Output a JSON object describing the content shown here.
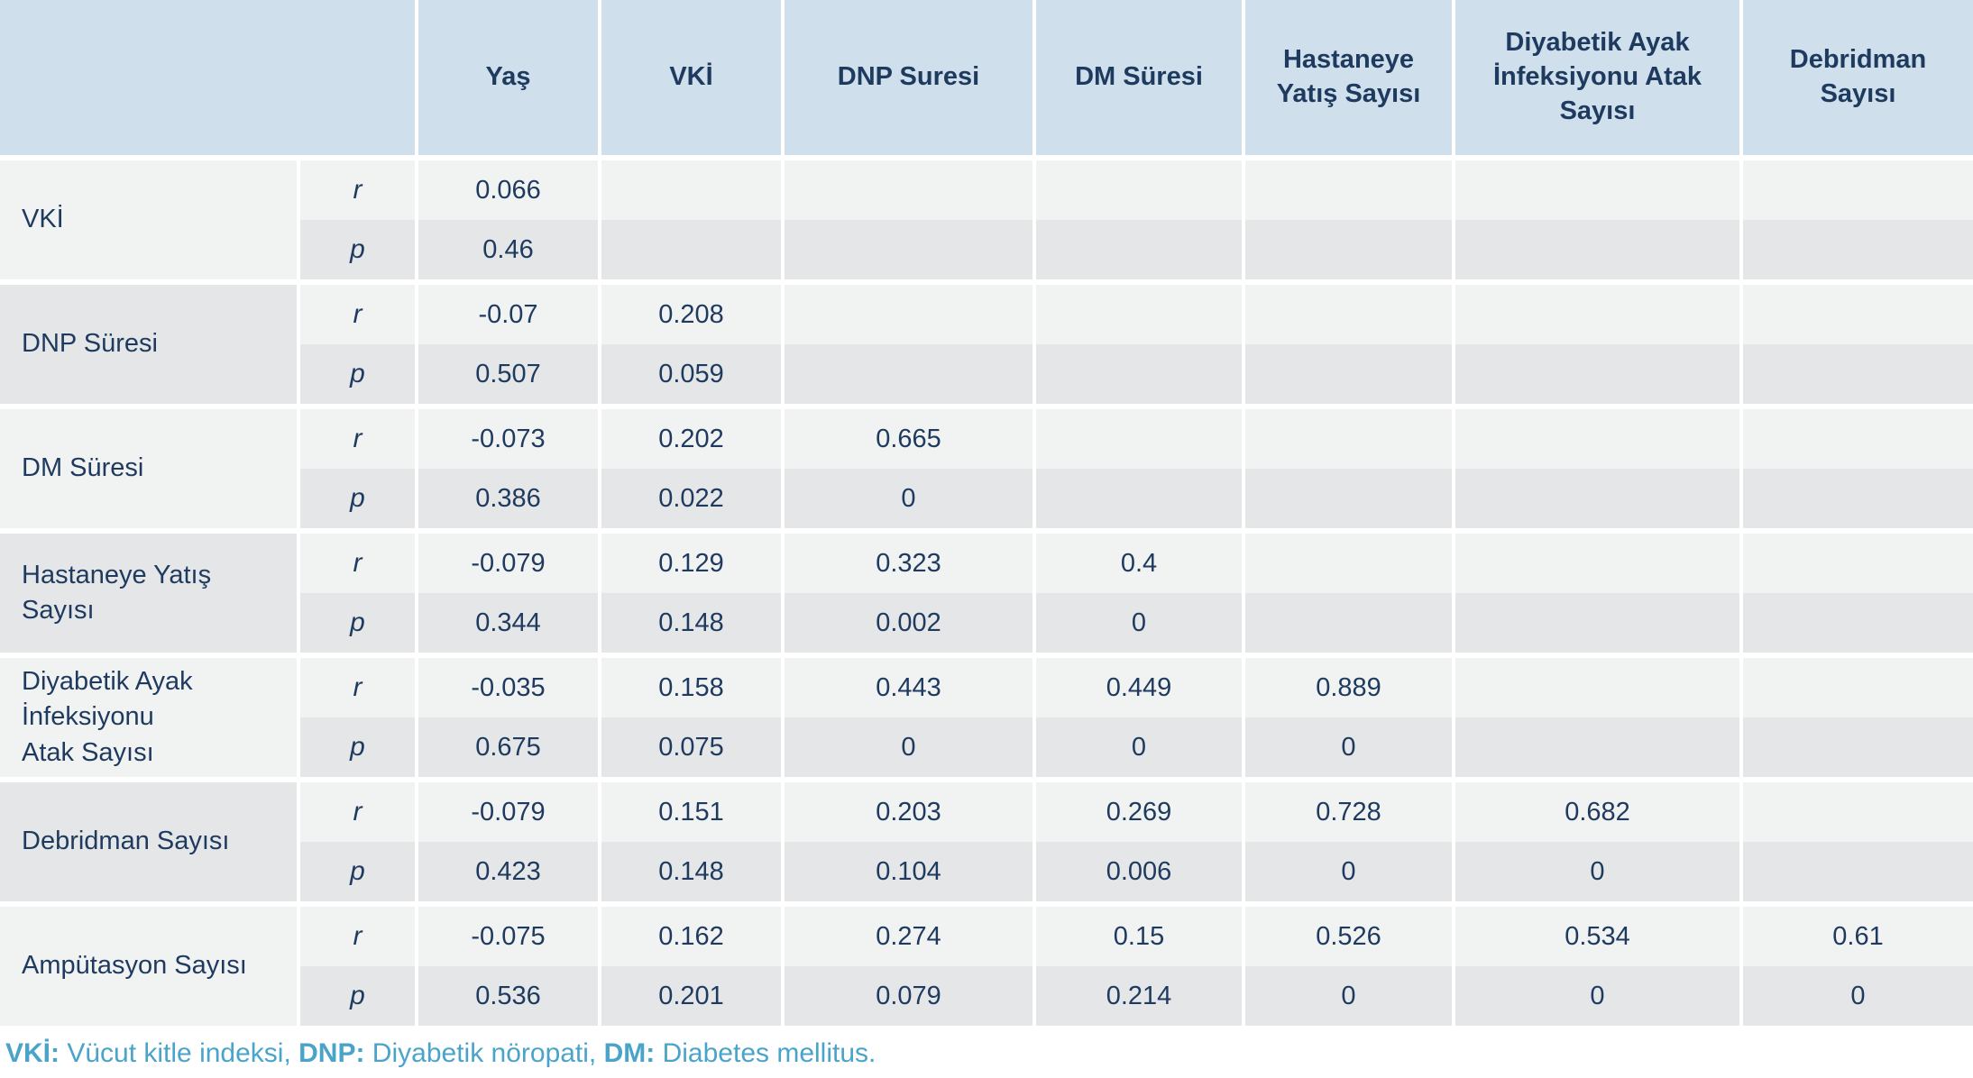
{
  "colors": {
    "header_bg": "#cfe0ec",
    "row_light": "#f1f2f2",
    "row_dark": "#e4e6e7",
    "text_navy": "#1f3a5f",
    "footnote_teal": "#4aa4c9",
    "page_bg": "#ffffff"
  },
  "chart_data": {
    "type": "table",
    "title": "",
    "columns": [
      "",
      "Yaş",
      "VKİ",
      "DNP Suresi",
      "DM Süresi",
      "Hastaneye\nYatış Sayısı",
      "Diyabetik Ayak\nİnfeksiyonu Atak\nSayısı",
      "Debridman\nSayısı"
    ],
    "stat_labels": {
      "r": "r",
      "p": "p"
    },
    "row_groups": [
      {
        "label": "VKİ",
        "r": [
          "0.066",
          "",
          "",
          "",
          "",
          "",
          ""
        ],
        "p": [
          "0.46",
          "",
          "",
          "",
          "",
          "",
          ""
        ]
      },
      {
        "label": "DNP Süresi",
        "r": [
          "-0.07",
          "0.208",
          "",
          "",
          "",
          "",
          ""
        ],
        "p": [
          "0.507",
          "0.059",
          "",
          "",
          "",
          "",
          ""
        ]
      },
      {
        "label": "DM Süresi",
        "r": [
          "-0.073",
          "0.202",
          "0.665",
          "",
          "",
          "",
          ""
        ],
        "p": [
          "0.386",
          "0.022",
          "0",
          "",
          "",
          "",
          ""
        ]
      },
      {
        "label": "Hastaneye Yatış\nSayısı",
        "r": [
          "-0.079",
          "0.129",
          "0.323",
          "0.4",
          "",
          "",
          ""
        ],
        "p": [
          "0.344",
          "0.148",
          "0.002",
          "0",
          "",
          "",
          ""
        ]
      },
      {
        "label": "Diyabetik Ayak\nİnfeksiyonu\nAtak Sayısı",
        "r": [
          "-0.035",
          "0.158",
          "0.443",
          "0.449",
          "0.889",
          "",
          ""
        ],
        "p": [
          "0.675",
          "0.075",
          "0",
          "0",
          "0",
          "",
          ""
        ]
      },
      {
        "label": "Debridman Sayısı",
        "r": [
          "-0.079",
          "0.151",
          "0.203",
          "0.269",
          "0.728",
          "0.682",
          ""
        ],
        "p": [
          "0.423",
          "0.148",
          "0.104",
          "0.006",
          "0",
          "0",
          ""
        ]
      },
      {
        "label": "Ampütasyon Sayısı",
        "r": [
          "-0.075",
          "0.162",
          "0.274",
          "0.15",
          "0.526",
          "0.534",
          "0.61"
        ],
        "p": [
          "0.536",
          "0.201",
          "0.079",
          "0.214",
          "0",
          "0",
          "0"
        ]
      }
    ]
  },
  "footnote": {
    "segments": [
      {
        "text": "VKİ:",
        "bold": true
      },
      {
        "text": " Vücut kitle indeksi, ",
        "bold": false
      },
      {
        "text": "DNP:",
        "bold": true
      },
      {
        "text": " Diyabetik nöropati, ",
        "bold": false
      },
      {
        "text": "DM:",
        "bold": true
      },
      {
        "text": " Diabetes mellitus.",
        "bold": false
      }
    ]
  }
}
